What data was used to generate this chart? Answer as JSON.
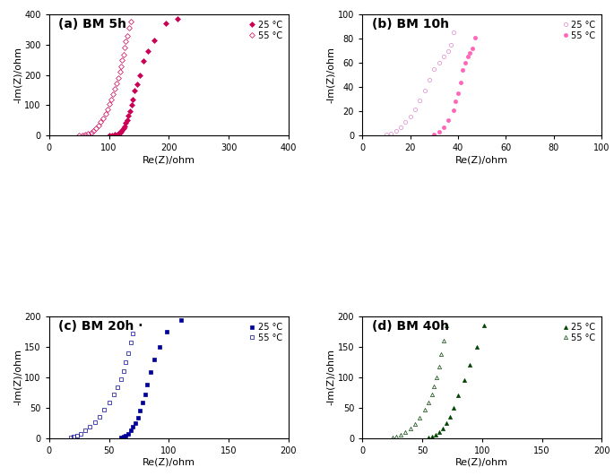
{
  "subplots": [
    {
      "title": "(a) BM 5h",
      "xlabel": "Re(Z)/ohm",
      "ylabel": "-Im(Z)/ohm",
      "xlim": [
        0,
        400
      ],
      "ylim": [
        0,
        400
      ],
      "xticks": [
        0,
        100,
        200,
        300,
        400
      ],
      "yticks": [
        0,
        100,
        200,
        300,
        400
      ],
      "series": [
        {
          "label": "25 °C",
          "color": "#cc0055",
          "marker": "D",
          "filled": true,
          "x": [
            100,
            105,
            110,
            115,
            118,
            120,
            122,
            124,
            126,
            128,
            130,
            132,
            135,
            138,
            140,
            143,
            147,
            152,
            158,
            165,
            175,
            195,
            215
          ],
          "y": [
            1,
            2,
            4,
            7,
            10,
            14,
            19,
            25,
            32,
            42,
            52,
            65,
            80,
            100,
            120,
            148,
            170,
            200,
            245,
            280,
            315,
            370,
            385
          ]
        },
        {
          "label": "55 °C",
          "color": "#cc0055",
          "marker": "D",
          "filled": false,
          "x": [
            50,
            55,
            60,
            65,
            70,
            74,
            78,
            82,
            86,
            90,
            94,
            97,
            100,
            103,
            106,
            109,
            112,
            115,
            118,
            120,
            122,
            124,
            126,
            128,
            130,
            133,
            136
          ],
          "y": [
            1,
            2,
            4,
            7,
            11,
            17,
            24,
            33,
            44,
            57,
            72,
            88,
            105,
            120,
            138,
            155,
            173,
            190,
            210,
            228,
            248,
            268,
            290,
            310,
            330,
            355,
            375
          ]
        }
      ]
    },
    {
      "title": "(b) BM 10h",
      "xlabel": "Re(Z)/ohm",
      "ylabel": "-Im(Z)/ohm",
      "xlim": [
        0,
        100
      ],
      "ylim": [
        0,
        100
      ],
      "xticks": [
        0,
        20,
        40,
        60,
        80,
        100
      ],
      "yticks": [
        0,
        20,
        40,
        60,
        80,
        100
      ],
      "series": [
        {
          "label": "25 °C",
          "color": "#dd88cc",
          "marker": "o",
          "filled": false,
          "x": [
            10,
            12,
            14,
            16,
            18,
            20,
            22,
            24,
            26,
            28,
            30,
            32,
            34,
            36,
            37,
            38
          ],
          "y": [
            1,
            2,
            4,
            7,
            11,
            16,
            22,
            29,
            37,
            46,
            55,
            60,
            65,
            70,
            75,
            85
          ]
        },
        {
          "label": "55 °C",
          "color": "#ff66bb",
          "marker": "o",
          "filled": true,
          "x": [
            30,
            32,
            34,
            36,
            38,
            39,
            40,
            41,
            42,
            43,
            44,
            45,
            46,
            47
          ],
          "y": [
            1,
            3,
            7,
            13,
            21,
            28,
            35,
            44,
            54,
            60,
            65,
            68,
            72,
            81
          ]
        }
      ]
    },
    {
      "title": "(c) BM 20h ·",
      "xlabel": "Re(Z)/ohm",
      "ylabel": "-Im(Z)/ohm",
      "xlim": [
        0,
        200
      ],
      "ylim": [
        0,
        200
      ],
      "xticks": [
        0,
        50,
        100,
        150,
        200
      ],
      "yticks": [
        0,
        50,
        100,
        150,
        200
      ],
      "series": [
        {
          "label": "25 °C",
          "color": "#000099",
          "marker": "s",
          "filled": true,
          "x": [
            60,
            62,
            64,
            66,
            68,
            70,
            72,
            74,
            76,
            78,
            80,
            82,
            85,
            88,
            92,
            98,
            110
          ],
          "y": [
            1,
            2,
            4,
            7,
            12,
            18,
            25,
            34,
            45,
            58,
            72,
            88,
            108,
            130,
            150,
            175,
            195
          ]
        },
        {
          "label": "55 °C",
          "color": "#000099",
          "marker": "s",
          "filled": false,
          "x": [
            18,
            20,
            23,
            26,
            30,
            34,
            38,
            42,
            46,
            50,
            54,
            57,
            60,
            62,
            64,
            66,
            68,
            70
          ],
          "y": [
            1,
            2,
            4,
            7,
            12,
            18,
            26,
            35,
            46,
            58,
            71,
            84,
            97,
            110,
            125,
            140,
            158,
            172
          ]
        }
      ]
    },
    {
      "title": "(d) BM 40h",
      "xlabel": "Re(Z)/ohm",
      "ylabel": "-Im(Z)/ohm",
      "xlim": [
        0,
        200
      ],
      "ylim": [
        0,
        200
      ],
      "xticks": [
        0,
        50,
        100,
        150,
        200
      ],
      "yticks": [
        0,
        50,
        100,
        150,
        200
      ],
      "series": [
        {
          "label": "25 °C",
          "color": "#004400",
          "marker": "^",
          "filled": true,
          "x": [
            55,
            58,
            61,
            64,
            67,
            70,
            73,
            76,
            80,
            85,
            90,
            96,
            102
          ],
          "y": [
            1,
            2,
            5,
            9,
            15,
            24,
            35,
            50,
            70,
            95,
            120,
            150,
            185
          ]
        },
        {
          "label": "55 °C",
          "color": "#004400",
          "marker": "^",
          "filled": false,
          "x": [
            25,
            28,
            32,
            36,
            40,
            44,
            48,
            52,
            55,
            58,
            60,
            62,
            64,
            66,
            68,
            70
          ],
          "y": [
            1,
            2,
            5,
            9,
            15,
            23,
            33,
            46,
            58,
            72,
            85,
            100,
            118,
            138,
            160,
            185
          ]
        }
      ]
    }
  ],
  "figure_bg": "#ffffff",
  "title_fontsize": 10,
  "label_fontsize": 8,
  "tick_fontsize": 7,
  "legend_fontsize": 7,
  "markersize": 3
}
